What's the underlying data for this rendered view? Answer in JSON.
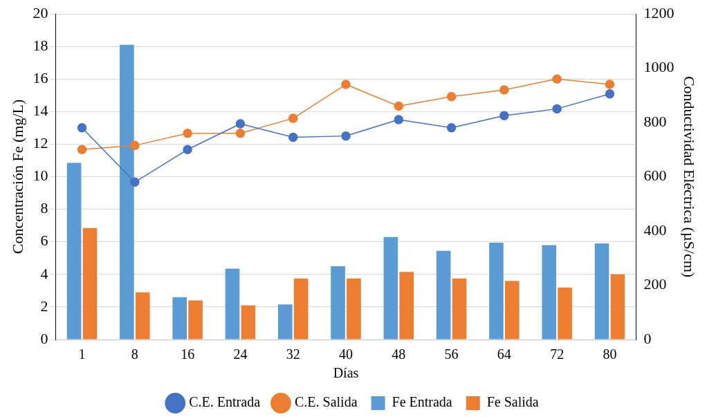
{
  "chart_data": {
    "type": "bar",
    "xlabel": "Días",
    "ylabel": "Concentración Fe (mg/L)",
    "y2label": "Conductividad Eléctrica (µS/cm)",
    "categories": [
      "1",
      "8",
      "16",
      "24",
      "32",
      "40",
      "48",
      "56",
      "64",
      "72",
      "80"
    ],
    "series": [
      {
        "name": "Fe Entrada",
        "color": "#5b9bd5",
        "values": [
          10.85,
          18.1,
          2.6,
          4.35,
          2.15,
          4.5,
          6.3,
          5.45,
          5.95,
          5.8,
          5.9
        ]
      },
      {
        "name": "Fe Salida",
        "color": "#ed7d31",
        "values": [
          6.85,
          2.9,
          2.4,
          2.1,
          3.75,
          3.75,
          4.15,
          3.75,
          3.6,
          3.2,
          4.0
        ]
      },
      {
        "name": "C.E. Entrada",
        "type": "line",
        "axis": "y2",
        "color": "#4472c4",
        "values": [
          780,
          580,
          700,
          795,
          745,
          750,
          810,
          780,
          825,
          850,
          905
        ]
      },
      {
        "name": "C.E. Salida",
        "type": "line",
        "axis": "y2",
        "color": "#ed7d31",
        "values": [
          700,
          715,
          760,
          760,
          815,
          940,
          860,
          895,
          920,
          960,
          940
        ]
      }
    ],
    "ylim": [
      0,
      20
    ],
    "yticks": [
      0,
      2,
      4,
      6,
      8,
      10,
      12,
      14,
      16,
      18,
      20
    ],
    "y2lim": [
      0,
      1200
    ],
    "y2ticks": [
      0,
      200,
      400,
      600,
      800,
      1000,
      1200
    ],
    "grid": "y",
    "legend": "bottom",
    "marker": "circle"
  }
}
